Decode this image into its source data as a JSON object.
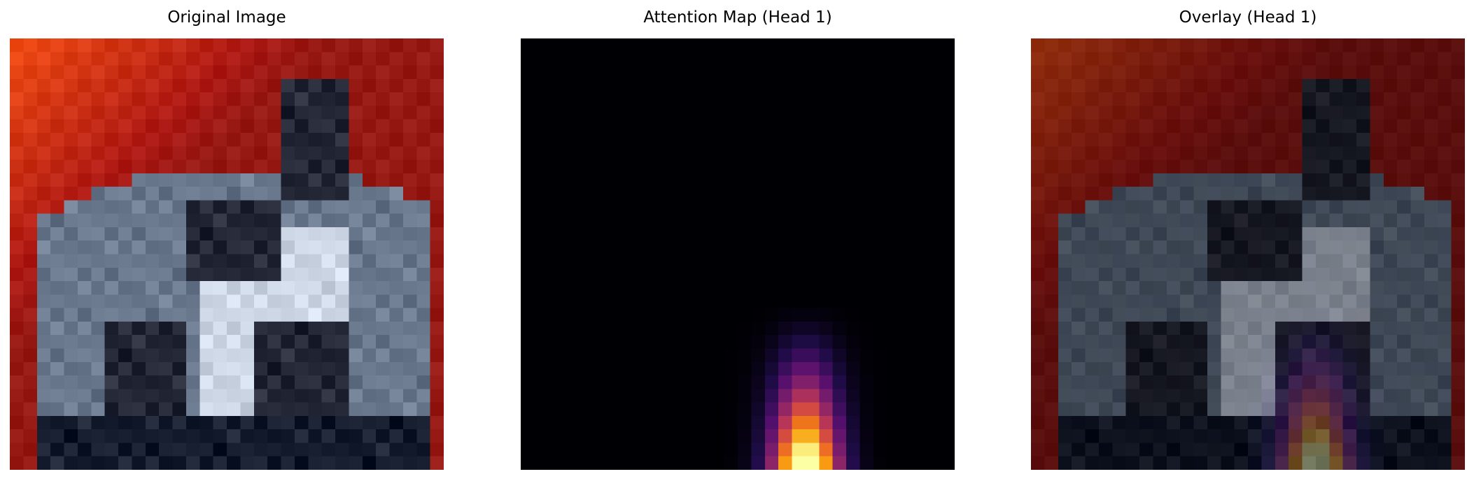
{
  "panels": [
    {
      "title": "Original Image"
    },
    {
      "title": "Attention Map (Head 1)"
    },
    {
      "title": "Overlay (Head 1)"
    }
  ],
  "chart_data": [
    {
      "type": "heatmap",
      "title": "Original Image",
      "grid": false,
      "axes": "off",
      "resolution": [
        32,
        32
      ]
    },
    {
      "type": "heatmap",
      "title": "Attention Map (Head 1)",
      "grid": false,
      "axes": "off",
      "colormap": "inferno",
      "resolution": [
        32,
        32
      ],
      "note_peak": "high attention at bottom-center-right region"
    },
    {
      "type": "heatmap",
      "title": "Overlay (Head 1)",
      "grid": false,
      "axes": "off",
      "colormap": "inferno",
      "resolution": [
        32,
        32
      ]
    }
  ],
  "colors": {
    "background": "#ffffff",
    "title_text": "#000000"
  }
}
